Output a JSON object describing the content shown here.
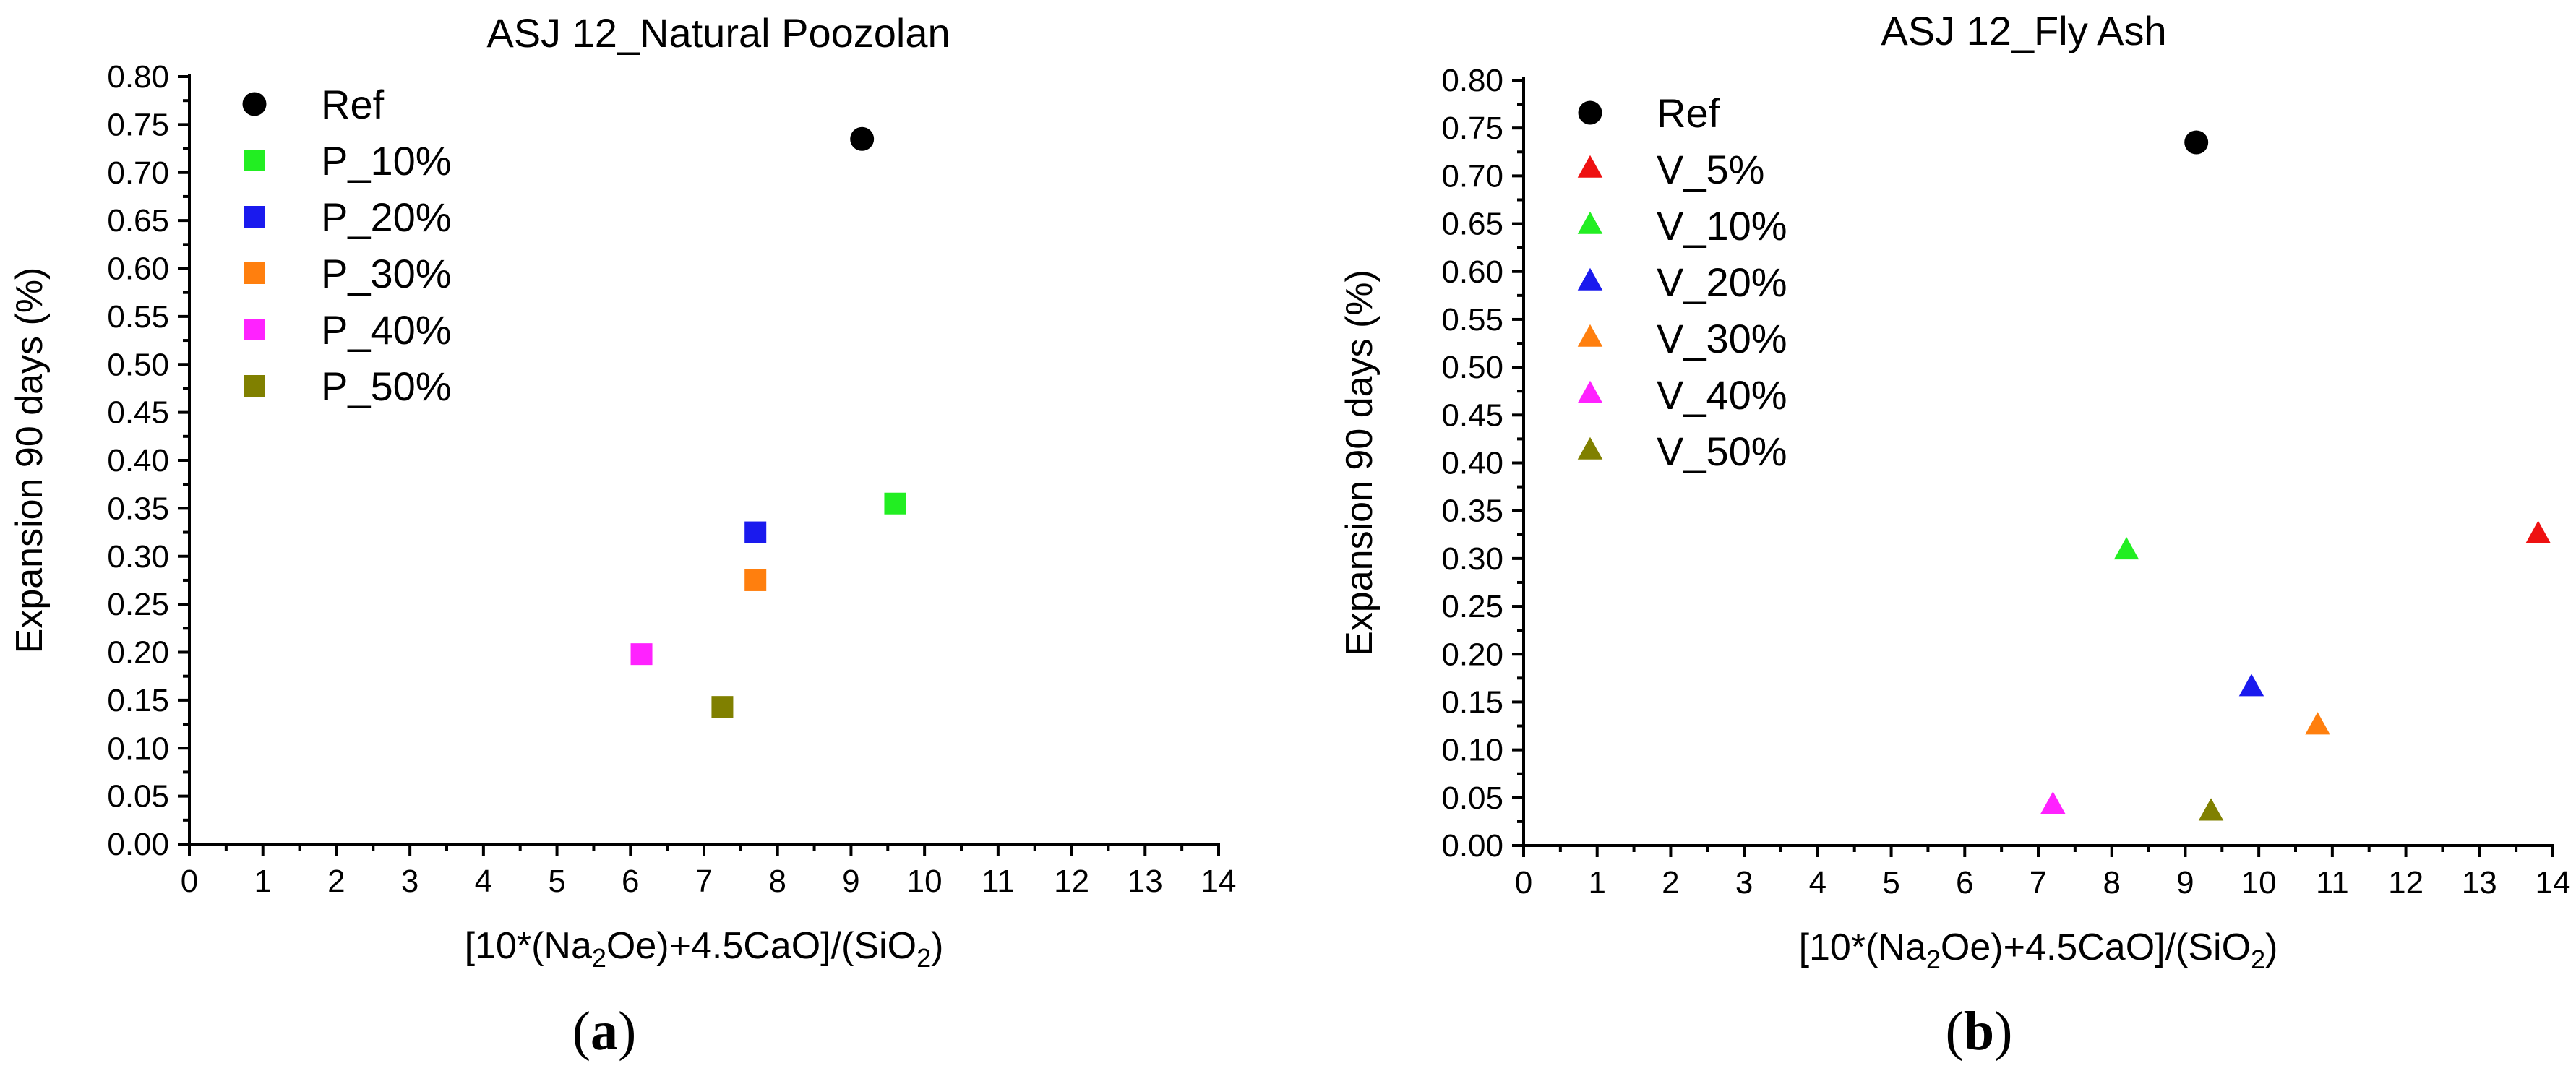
{
  "chart_data": [
    {
      "type": "scatter",
      "title": "ASJ 12_Natural Poozolan",
      "xlabel_parts": [
        "[10*(Na",
        "2",
        "Oe)+4.5CaO]/(SiO",
        "2",
        ")"
      ],
      "ylabel": "Expansion 90 days (%)",
      "xlim": [
        0,
        14
      ],
      "ylim": [
        0,
        0.8
      ],
      "x_ticks": [
        "0",
        "1",
        "2",
        "3",
        "4",
        "5",
        "6",
        "7",
        "8",
        "9",
        "10",
        "11",
        "12",
        "13",
        "14"
      ],
      "y_ticks": [
        "0.00",
        "0.05",
        "0.10",
        "0.15",
        "0.20",
        "0.25",
        "0.30",
        "0.35",
        "0.40",
        "0.45",
        "0.50",
        "0.55",
        "0.60",
        "0.65",
        "0.70",
        "0.75",
        "0.80"
      ],
      "legend_position": "top-left",
      "panel_label": [
        "(",
        "a",
        ")"
      ],
      "series": [
        {
          "name": "Ref",
          "marker": "circle",
          "color": "#000000",
          "points": [
            [
              9.15,
              0.735
            ]
          ]
        },
        {
          "name": "P_10%",
          "marker": "square",
          "color": "#22ee22",
          "points": [
            [
              9.6,
              0.355
            ]
          ]
        },
        {
          "name": "P_20%",
          "marker": "square",
          "color": "#1a1aee",
          "points": [
            [
              7.7,
              0.325
            ]
          ]
        },
        {
          "name": "P_30%",
          "marker": "square",
          "color": "#ff7f0e",
          "points": [
            [
              7.7,
              0.275
            ]
          ]
        },
        {
          "name": "P_40%",
          "marker": "square",
          "color": "#ff22ff",
          "points": [
            [
              6.15,
              0.198
            ]
          ]
        },
        {
          "name": "P_50%",
          "marker": "square",
          "color": "#808000",
          "points": [
            [
              7.25,
              0.143
            ]
          ]
        }
      ]
    },
    {
      "type": "scatter",
      "title": "ASJ 12_Fly Ash",
      "xlabel_parts": [
        "[10*(Na",
        "2",
        "Oe)+4.5CaO]/(SiO",
        "2",
        ")"
      ],
      "ylabel": "Expansion 90 days (%)",
      "xlim": [
        0,
        14
      ],
      "ylim": [
        0,
        0.8
      ],
      "x_ticks": [
        "0",
        "1",
        "2",
        "3",
        "4",
        "5",
        "6",
        "7",
        "8",
        "9",
        "10",
        "11",
        "12",
        "13",
        "14"
      ],
      "y_ticks": [
        "0.00",
        "0.05",
        "0.10",
        "0.15",
        "0.20",
        "0.25",
        "0.30",
        "0.35",
        "0.40",
        "0.45",
        "0.50",
        "0.55",
        "0.60",
        "0.65",
        "0.70",
        "0.75",
        "0.80"
      ],
      "legend_position": "top-left",
      "panel_label": [
        "(",
        "b",
        ")"
      ],
      "series": [
        {
          "name": "Ref",
          "marker": "circle",
          "color": "#000000",
          "points": [
            [
              9.15,
              0.735
            ]
          ]
        },
        {
          "name": "V_5%",
          "marker": "triangle",
          "color": "#ee1111",
          "points": [
            [
              13.8,
              0.325
            ]
          ]
        },
        {
          "name": "V_10%",
          "marker": "triangle",
          "color": "#22ee22",
          "points": [
            [
              8.2,
              0.308
            ]
          ]
        },
        {
          "name": "V_20%",
          "marker": "triangle",
          "color": "#1a1aee",
          "points": [
            [
              9.9,
              0.165
            ]
          ]
        },
        {
          "name": "V_30%",
          "marker": "triangle",
          "color": "#ff7f0e",
          "points": [
            [
              10.8,
              0.125
            ]
          ]
        },
        {
          "name": "V_40%",
          "marker": "triangle",
          "color": "#ff22ff",
          "points": [
            [
              7.2,
              0.042
            ]
          ]
        },
        {
          "name": "V_50%",
          "marker": "triangle",
          "color": "#808000",
          "points": [
            [
              9.35,
              0.035
            ]
          ]
        }
      ]
    }
  ]
}
